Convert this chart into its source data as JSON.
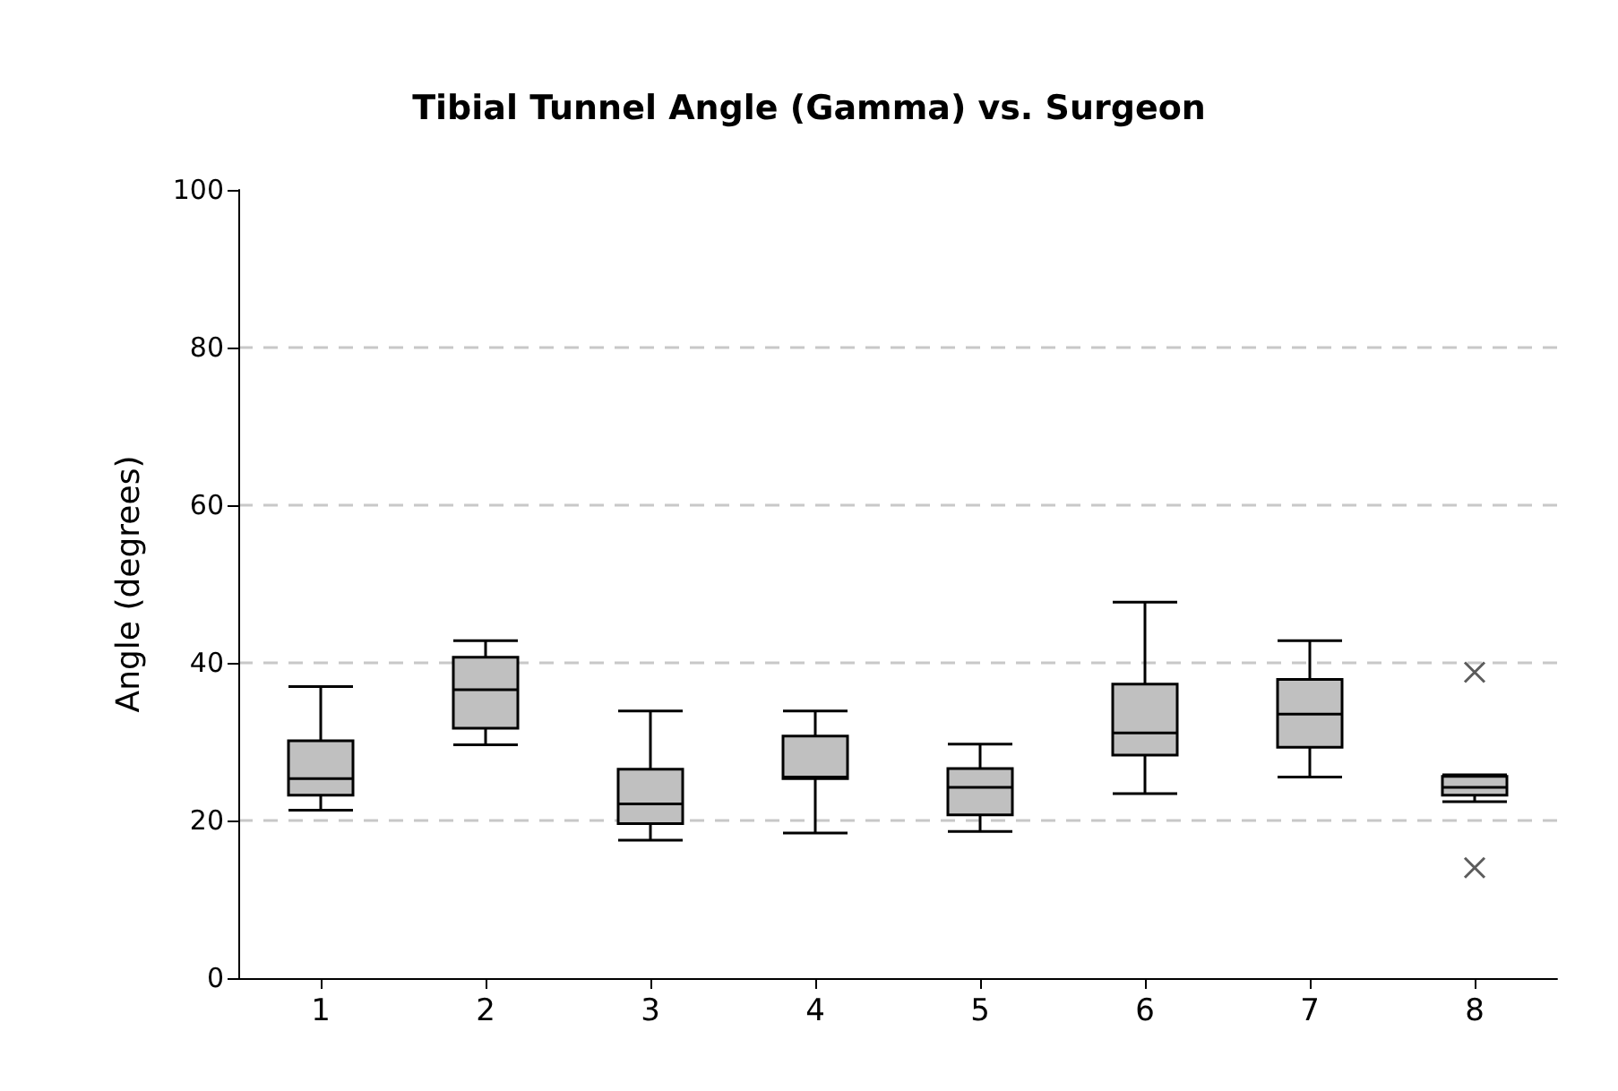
{
  "chart_data": {
    "type": "box",
    "title": "Tibial Tunnel Angle (Gamma) vs. Surgeon",
    "ylabel": "Angle (degrees)",
    "categories": [
      "1",
      "2",
      "3",
      "4",
      "5",
      "6",
      "7",
      "8"
    ],
    "color": "#c0c0c0",
    "boxes": [
      {
        "low": 21.3,
        "q1": 23.2,
        "median": 25.3,
        "q3": 30.1,
        "high": 37.0
      },
      {
        "low": 29.6,
        "q1": 31.7,
        "median": 36.6,
        "q3": 40.7,
        "high": 42.8
      },
      {
        "low": 17.5,
        "q1": 19.6,
        "median": 22.1,
        "q3": 26.5,
        "high": 33.9
      },
      {
        "low": 18.4,
        "q1": 25.3,
        "median": 25.5,
        "q3": 30.7,
        "high": 33.9
      },
      {
        "low": 18.6,
        "q1": 20.7,
        "median": 24.2,
        "q3": 26.6,
        "high": 29.7
      },
      {
        "low": 23.4,
        "q1": 28.3,
        "median": 31.1,
        "q3": 37.3,
        "high": 47.7
      },
      {
        "low": 25.5,
        "q1": 29.3,
        "median": 33.5,
        "q3": 37.9,
        "high": 42.8
      },
      {
        "low": 22.4,
        "q1": 23.2,
        "median": 24.2,
        "q3": 25.6,
        "high": 25.8,
        "outliers": [
          38.8,
          14.0
        ]
      }
    ],
    "ylim": [
      0,
      100
    ],
    "yticks": [
      0,
      20,
      40,
      60,
      80,
      100
    ],
    "grid": "y",
    "marker": "cross"
  }
}
